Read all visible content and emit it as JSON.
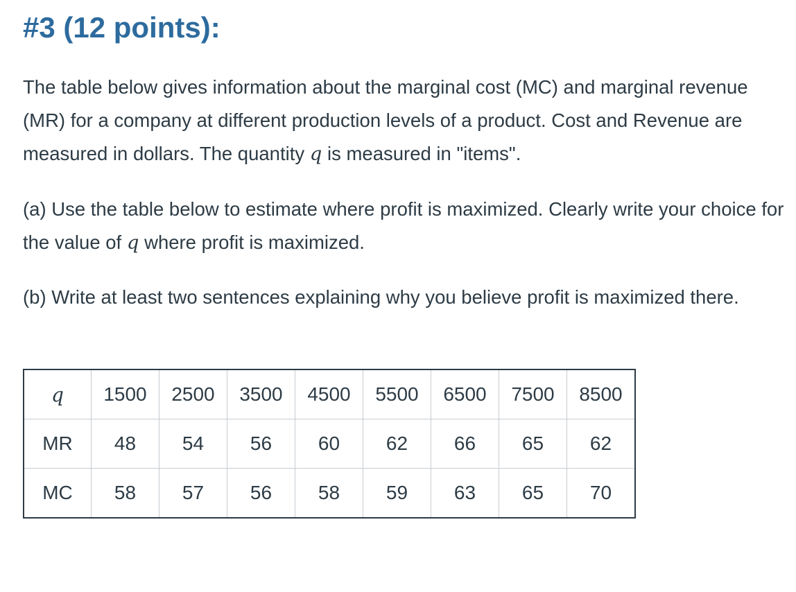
{
  "heading": "#3 (12 points):",
  "intro": {
    "part1": "The table below gives information about the marginal cost (MC) and marginal revenue (MR) for a company at different production levels of a product. Cost and Revenue are measured in dollars. The quantity ",
    "var": "q",
    "part2": " is measured in \"items\"."
  },
  "part_a": {
    "part1": "(a) Use the table below to estimate where profit is maximized. Clearly write your choice for the value of ",
    "var": "q",
    "part2": " where profit is maximized."
  },
  "part_b": "(b) Write at least two sentences explaining why you believe profit is maximized there.",
  "table": {
    "header_label": "q",
    "quantities": [
      "1500",
      "2500",
      "3500",
      "4500",
      "5500",
      "6500",
      "7500",
      "8500"
    ],
    "rows": [
      {
        "label": "MR",
        "values": [
          "48",
          "54",
          "56",
          "60",
          "62",
          "66",
          "65",
          "62"
        ]
      },
      {
        "label": "MC",
        "values": [
          "58",
          "57",
          "56",
          "58",
          "59",
          "63",
          "65",
          "70"
        ]
      }
    ]
  }
}
